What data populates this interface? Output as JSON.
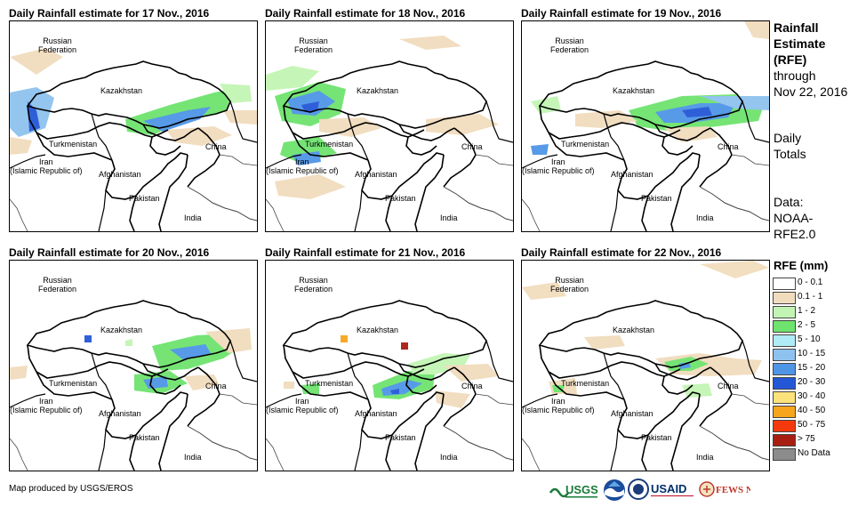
{
  "panels": [
    {
      "title": "Daily Rainfall estimate for 17 Nov., 2016"
    },
    {
      "title": "Daily Rainfall estimate for 18 Nov., 2016"
    },
    {
      "title": "Daily Rainfall estimate for 19 Nov., 2016"
    },
    {
      "title": "Daily Rainfall estimate for 20 Nov., 2016"
    },
    {
      "title": "Daily Rainfall estimate for 21 Nov., 2016"
    },
    {
      "title": "Daily Rainfall estimate for 22 Nov., 2016"
    }
  ],
  "map_labels": {
    "russia_line1": "Russian",
    "russia_line2": "Federation",
    "kazakhstan": "Kazakhstan",
    "turkmenistan": "Turkmenistan",
    "china": "China",
    "iran_line1": "Iran",
    "iran_line2": "(Islamic Republic of)",
    "afghanistan": "Afghanistan",
    "pakistan": "Pakistan",
    "india": "India"
  },
  "side_info": {
    "title_line1": "Rainfall",
    "title_line2": "Estimate",
    "title_line3": "(RFE)",
    "through": "through",
    "date": "Nov 22, 2016",
    "daily_line1": "Daily",
    "daily_line2": "Totals",
    "data_line1": "Data:",
    "data_line2": "NOAA-",
    "data_line3": "RFE2.0"
  },
  "legend": {
    "title": "RFE (mm)",
    "items": [
      {
        "label": "0 - 0.1",
        "color": "#ffffff"
      },
      {
        "label": "0.1 - 1",
        "color": "#f1dcbd"
      },
      {
        "label": "1 - 2",
        "color": "#c2f5b4"
      },
      {
        "label": "2 - 5",
        "color": "#6ee36e"
      },
      {
        "label": "5 - 10",
        "color": "#b0ecf5"
      },
      {
        "label": "10 - 15",
        "color": "#8ec2ee"
      },
      {
        "label": "15 - 20",
        "color": "#4f95e6"
      },
      {
        "label": "20 - 30",
        "color": "#2457d6"
      },
      {
        "label": "30 - 40",
        "color": "#fbe27a"
      },
      {
        "label": "40 - 50",
        "color": "#f7a51c"
      },
      {
        "label": "50 - 75",
        "color": "#f43a0c"
      },
      {
        "label": "> 75",
        "color": "#a81e12"
      },
      {
        "label": "No Data",
        "color": "#8c8c8c"
      }
    ]
  },
  "footer": {
    "credit": "Map produced by USGS/EROS"
  },
  "logos": [
    {
      "name": "USGS"
    },
    {
      "name": "USAID"
    },
    {
      "name": "FEWS NET"
    }
  ]
}
